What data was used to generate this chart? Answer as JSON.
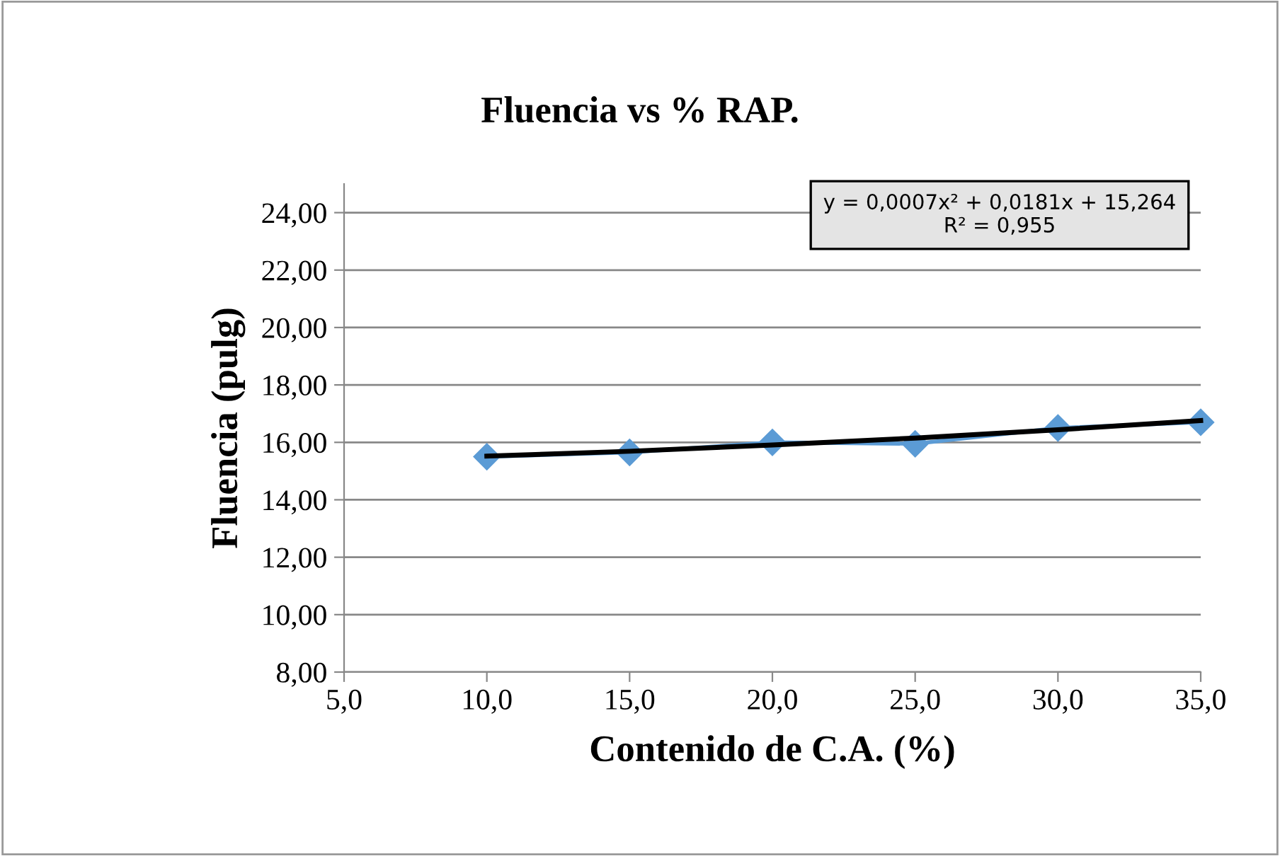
{
  "chart_data": {
    "type": "line",
    "title": "Fluencia vs % RAP.",
    "xlabel": "Contenido de C.A. (%)",
    "ylabel": "Fluencia (pulg)",
    "annotations": [
      "y = 0,0007x² + 0,0181x + 15,264\nR² = 0,955"
    ],
    "series": [
      {
        "color": "#5b9bd5",
        "marker": "diamond",
        "x": [
          10,
          15,
          20,
          25,
          30,
          35
        ],
        "values": [
          15.5,
          15.65,
          16.0,
          15.95,
          16.5,
          16.7
        ]
      },
      {
        "color": "#000000",
        "marker": "none",
        "x": [
          10,
          15,
          20,
          25,
          30,
          35
        ],
        "values": [
          15.52,
          15.69,
          15.91,
          16.15,
          16.44,
          16.76
        ]
      }
    ],
    "xlim": [
      5,
      35
    ],
    "xticks": [
      {
        "value": 5,
        "label": "5,0"
      },
      {
        "value": 10,
        "label": "10,0"
      },
      {
        "value": 15,
        "label": "15,0"
      },
      {
        "value": 20,
        "label": "20,0"
      },
      {
        "value": 25,
        "label": "25,0"
      },
      {
        "value": 30,
        "label": "30,0"
      },
      {
        "value": 35,
        "label": "35,0"
      }
    ],
    "ylim": [
      8,
      25
    ],
    "yticks": [
      {
        "value": 8,
        "label": "8,00"
      },
      {
        "value": 10,
        "label": "10,00"
      },
      {
        "value": 12,
        "label": "12,00"
      },
      {
        "value": 14,
        "label": "14,00"
      },
      {
        "value": 16,
        "label": "16,00"
      },
      {
        "value": 18,
        "label": "18,00"
      },
      {
        "value": 20,
        "label": "20,00"
      },
      {
        "value": 22,
        "label": "22,00"
      },
      {
        "value": 24,
        "label": "24,00"
      }
    ],
    "grid": "y",
    "legend": false
  }
}
